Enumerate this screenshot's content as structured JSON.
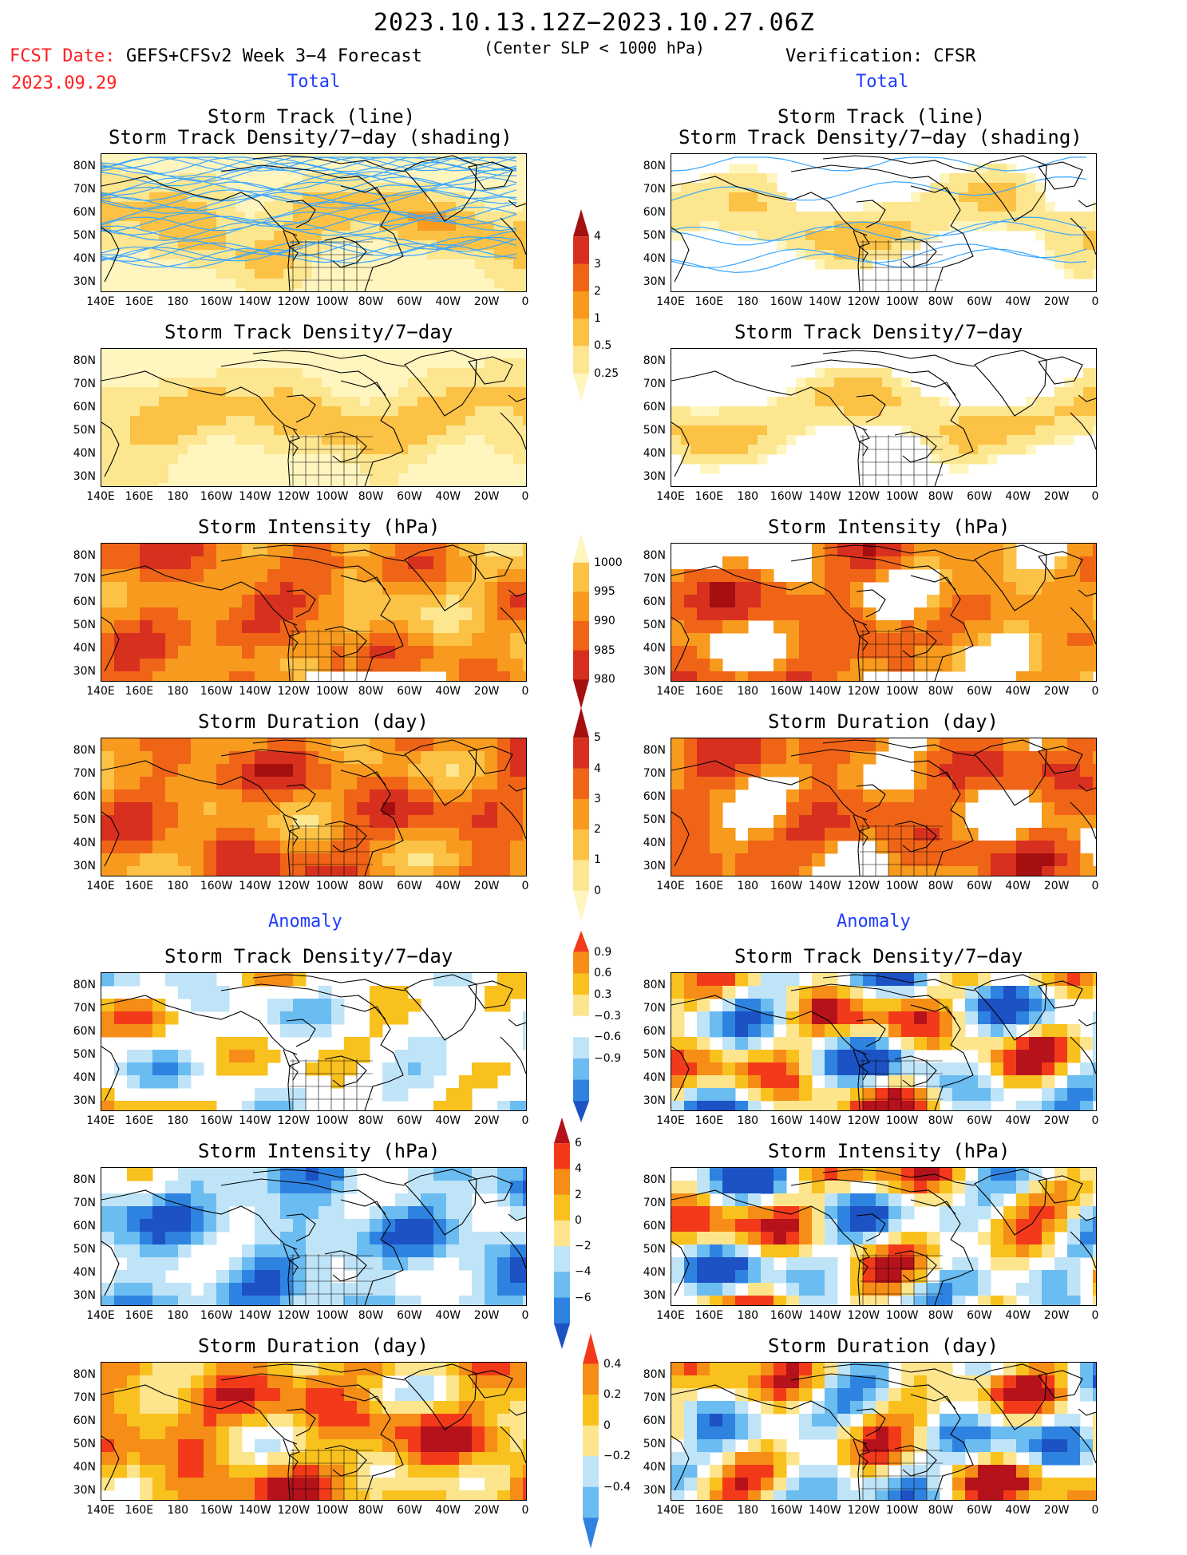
{
  "header": {
    "date_range": "2023.10.13.12Z−2023.10.27.06Z",
    "fcst_label": "FCST Date:",
    "fcst_date": "2023.09.29",
    "left_model": "GEFS+CFSv2 Week 3−4 Forecast",
    "criterion": "(Center SLP < 1000 hPa)",
    "verification": "Verification: CFSR"
  },
  "sections": {
    "total": "Total",
    "anomaly": "Anomaly"
  },
  "panel_titles": {
    "track_line": "Storm Track (line)",
    "track_density_shading": "Storm Track Density/7−day (shading)",
    "track_density": "Storm Track Density/7−day",
    "intensity": "Storm Intensity (hPa)",
    "duration": "Storm Duration (day)"
  },
  "axes": {
    "lat_labels": [
      "80N",
      "70N",
      "60N",
      "50N",
      "40N",
      "30N"
    ],
    "lon_labels": [
      "140E",
      "160E",
      "180",
      "160W",
      "140W",
      "120W",
      "100W",
      "80W",
      "60W",
      "40W",
      "20W",
      "0"
    ]
  },
  "colorbars": [
    {
      "name": "density-total",
      "labels": [
        "4",
        "3",
        "2",
        "1",
        "0.5",
        "0.25"
      ],
      "colors": [
        "#a50f0f",
        "#d7301f",
        "#f06418",
        "#f79a1e",
        "#fbc246",
        "#fde690",
        "#fff5bf"
      ]
    },
    {
      "name": "intensity-total",
      "labels": [
        "1000",
        "995",
        "990",
        "985",
        "980"
      ],
      "colors": [
        "#fff5bf",
        "#fbc246",
        "#f79a1e",
        "#f06418",
        "#d7301f",
        "#a50f0f"
      ]
    },
    {
      "name": "duration-total",
      "labels": [
        "5",
        "4",
        "3",
        "2",
        "1",
        "0"
      ],
      "colors": [
        "#a50f0f",
        "#d7301f",
        "#f06418",
        "#f79a1e",
        "#fbc246",
        "#fde690",
        "#fff5bf"
      ]
    },
    {
      "name": "density-anom",
      "labels": [
        "0.9",
        "0.6",
        "0.3",
        "−0.3",
        "−0.6",
        "−0.9"
      ],
      "colors": [
        "#f23a1a",
        "#f68d16",
        "#f9c11e",
        "#fde58e",
        "#ffffff",
        "#bfe4f8",
        "#6bbcf0",
        "#2f83e0",
        "#1c52c4"
      ]
    },
    {
      "name": "intensity-anom",
      "labels": [
        "6",
        "4",
        "2",
        "0",
        "−2",
        "−4",
        "−6"
      ],
      "colors": [
        "#b5121b",
        "#f23a1a",
        "#f68d16",
        "#f9c11e",
        "#fde58e",
        "#bfe4f8",
        "#6bbcf0",
        "#2f83e0",
        "#1c52c4"
      ]
    },
    {
      "name": "duration-anom",
      "labels": [
        "0.4",
        "0.2",
        "0",
        "−0.2",
        "−0.4"
      ],
      "colors": [
        "#f23a1a",
        "#f68d16",
        "#f9c11e",
        "#fde58e",
        "#bfe4f8",
        "#6bbcf0",
        "#2f83e0"
      ]
    }
  ],
  "palette": {
    "warm": [
      "#fff5bf",
      "#fde690",
      "#fbc246",
      "#f79a1e",
      "#f06418",
      "#d7301f",
      "#a50f0f"
    ],
    "anom": [
      "#1c52c4",
      "#2f83e0",
      "#6bbcf0",
      "#bfe4f8",
      "#ffffff",
      "#fde58e",
      "#f9c11e",
      "#f68d16",
      "#f23a1a",
      "#b5121b"
    ],
    "track_line": "#3aa6ff",
    "coast": "#000000"
  }
}
